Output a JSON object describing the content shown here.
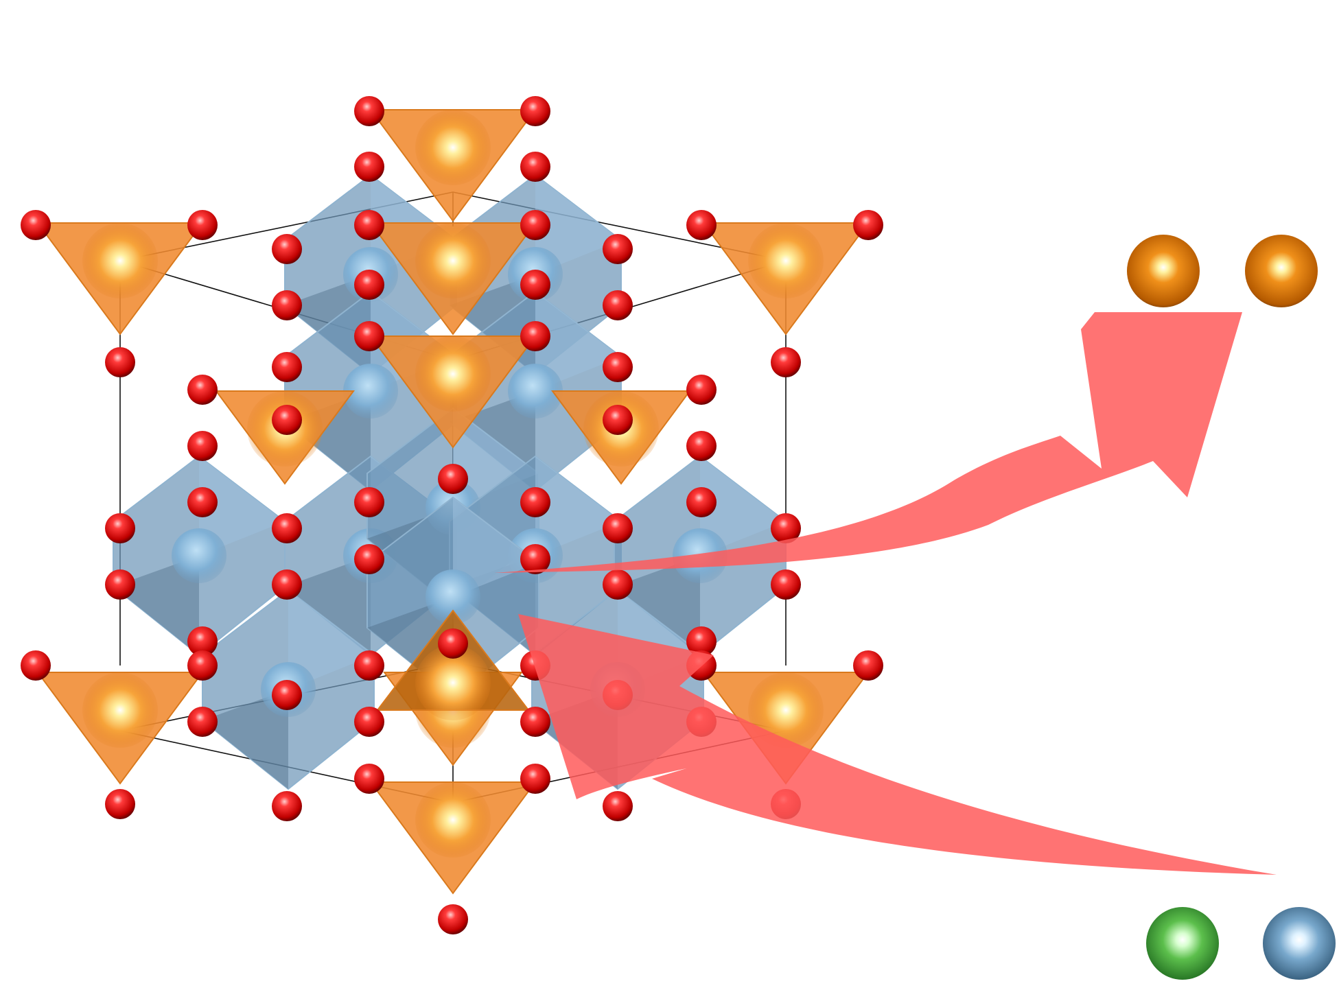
{
  "figure": {
    "colors": {
      "oxygen": "#d41010",
      "tetra_face": "#f08a30",
      "tetra_center": "#e07a1a",
      "octa_face": "#6f97b8",
      "octa_center": "#6fa0c8",
      "leaving_atom": "#d9790f",
      "incoming_atom_1": "#3fa63f",
      "incoming_atom_2": "#5f8fb4",
      "arrow": "#ff5a5a",
      "cell_edge": "#111111"
    },
    "atoms_out": [
      "orange-atom",
      "orange-atom"
    ],
    "atoms_in": [
      "green-atom",
      "blue-atom"
    ],
    "arrows": [
      "out-arrow",
      "in-arrow"
    ]
  }
}
